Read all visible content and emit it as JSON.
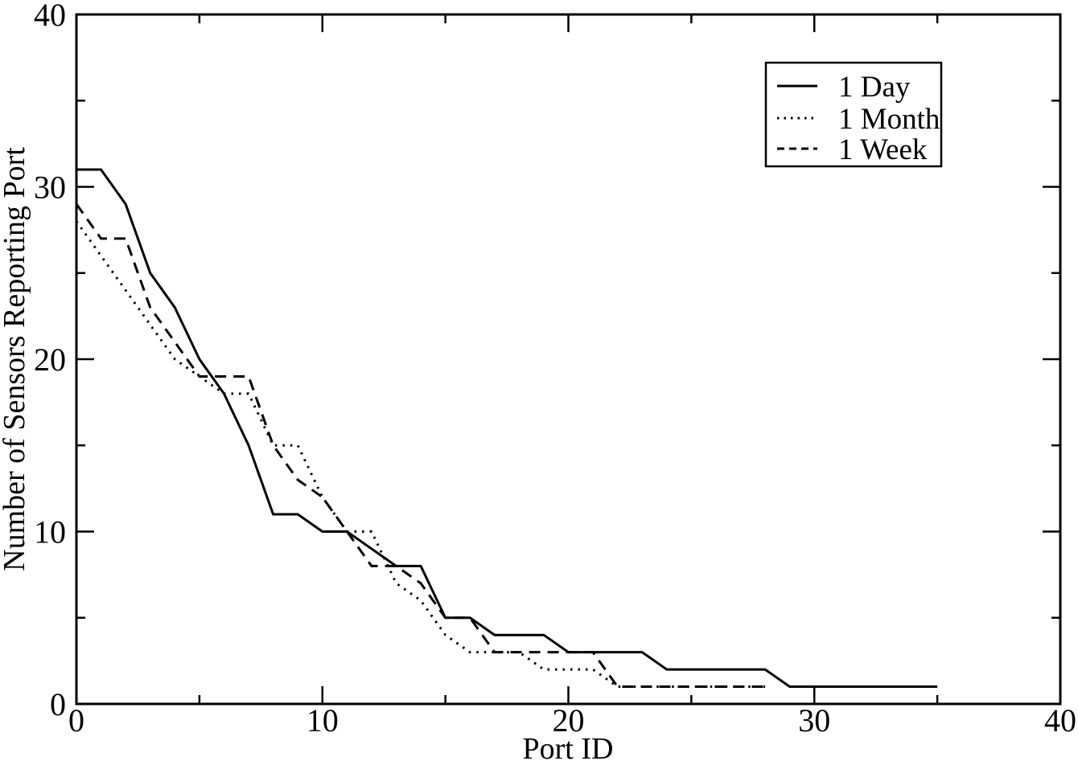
{
  "chart_data": {
    "type": "line",
    "title": "",
    "xlabel": "Port ID",
    "ylabel": "Number of Sensors Reporting Port",
    "xlim": [
      0,
      40
    ],
    "ylim": [
      0,
      40
    ],
    "x_major_ticks": [
      0,
      10,
      20,
      30,
      40
    ],
    "x_minor_ticks": [
      5,
      15,
      25,
      35
    ],
    "y_major_ticks": [
      0,
      10,
      20,
      30,
      40
    ],
    "y_minor_ticks": [
      5,
      15,
      25,
      35
    ],
    "grid": false,
    "background_color": "#ffffff",
    "line_color": "#000000",
    "legend_position": "top-right",
    "series": [
      {
        "name": "1 Day",
        "style": "solid",
        "color": "#000000",
        "x": [
          0,
          1,
          2,
          3,
          4,
          5,
          6,
          7,
          8,
          9,
          10,
          11,
          12,
          13,
          14,
          15,
          16,
          17,
          18,
          19,
          20,
          21,
          22,
          23,
          24,
          25,
          26,
          27,
          28,
          29,
          30,
          31,
          32,
          33,
          34,
          35
        ],
        "y": [
          31,
          31,
          29,
          25,
          23,
          20,
          18,
          15,
          11,
          11,
          10,
          10,
          9,
          8,
          8,
          5,
          5,
          4,
          4,
          4,
          3,
          3,
          3,
          3,
          2,
          2,
          2,
          2,
          2,
          1,
          1,
          1,
          1,
          1,
          1,
          1
        ]
      },
      {
        "name": "1 Month",
        "style": "dotted",
        "color": "#000000",
        "x": [
          0,
          1,
          2,
          3,
          4,
          5,
          6,
          7,
          8,
          9,
          10,
          11,
          12,
          13,
          14,
          15,
          16,
          17,
          18,
          19,
          20,
          21,
          22,
          23,
          24,
          25,
          26,
          27,
          28
        ],
        "y": [
          28,
          26,
          24,
          22,
          20,
          19,
          18,
          18,
          15,
          15,
          12,
          10,
          10,
          7,
          6,
          4,
          3,
          3,
          3,
          2,
          2,
          2,
          1,
          1,
          1,
          1,
          1,
          1,
          1
        ]
      },
      {
        "name": "1 Week",
        "style": "dashed",
        "color": "#000000",
        "x": [
          0,
          1,
          2,
          3,
          4,
          5,
          6,
          7,
          8,
          9,
          10,
          11,
          12,
          13,
          14,
          15,
          16,
          17,
          18,
          19,
          20,
          21,
          22,
          23,
          24,
          25,
          26,
          27,
          28
        ],
        "y": [
          29,
          27,
          27,
          23,
          21,
          19,
          19,
          19,
          15,
          13,
          12,
          10,
          8,
          8,
          7,
          5,
          5,
          3,
          3,
          3,
          3,
          3,
          1,
          1,
          1,
          1,
          1,
          1,
          1
        ]
      }
    ]
  },
  "legend": {
    "items": [
      {
        "label": "1 Day",
        "style": "solid"
      },
      {
        "label": "1 Month",
        "style": "dotted"
      },
      {
        "label": "1 Week",
        "style": "dashed"
      }
    ]
  },
  "colors": {
    "foreground": "#000000",
    "background": "#ffffff"
  }
}
